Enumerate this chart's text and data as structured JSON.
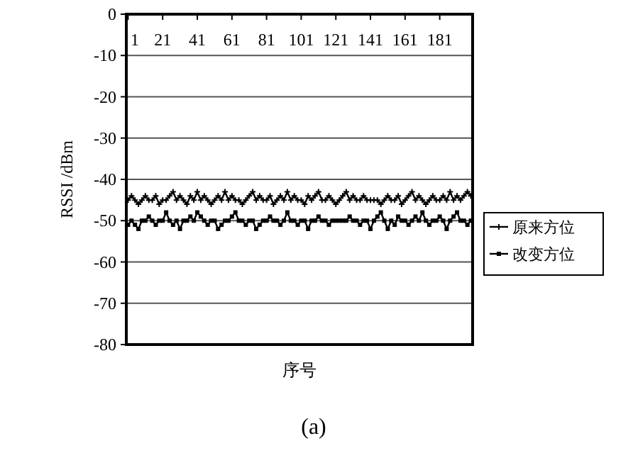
{
  "chart_data": {
    "type": "line",
    "xlabel": "序号",
    "ylabel": "RSSI /dBm",
    "annotations": [
      "(a)"
    ],
    "xlim": [
      0,
      200
    ],
    "xticks": [
      1,
      21,
      41,
      61,
      81,
      101,
      121,
      141,
      161,
      181
    ],
    "ylim": [
      -80,
      0
    ],
    "yticks": [
      0,
      -10,
      -20,
      -30,
      -40,
      -50,
      -60,
      -70,
      -80
    ],
    "grid": "y",
    "legend": "right",
    "line_style": "solid",
    "series": [
      {
        "name": "原来方位",
        "color": "#000000",
        "marker": "cross",
        "x": [
          1,
          3,
          5,
          7,
          9,
          11,
          13,
          15,
          17,
          19,
          21,
          23,
          25,
          27,
          29,
          31,
          33,
          35,
          37,
          39,
          41,
          43,
          45,
          47,
          49,
          51,
          53,
          55,
          57,
          59,
          61,
          63,
          65,
          67,
          69,
          71,
          73,
          75,
          77,
          79,
          81,
          83,
          85,
          87,
          89,
          91,
          93,
          95,
          97,
          99,
          101,
          103,
          105,
          107,
          109,
          111,
          113,
          115,
          117,
          119,
          121,
          123,
          125,
          127,
          129,
          131,
          133,
          135,
          137,
          139,
          141,
          143,
          145,
          147,
          149,
          151,
          153,
          155,
          157,
          159,
          161,
          163,
          165,
          167,
          169,
          171,
          173,
          175,
          177,
          179,
          181,
          183,
          185,
          187,
          189,
          191,
          193,
          195,
          197,
          199
        ],
        "values": [
          -45,
          -44,
          -45,
          -46,
          -45,
          -44,
          -45,
          -45,
          -44,
          -46,
          -45,
          -45,
          -44,
          -43,
          -45,
          -44,
          -45,
          -46,
          -44,
          -45,
          -43,
          -45,
          -44,
          -45,
          -46,
          -45,
          -44,
          -45,
          -43,
          -45,
          -44,
          -45,
          -45,
          -46,
          -45,
          -44,
          -43,
          -45,
          -44,
          -45,
          -45,
          -44,
          -46,
          -45,
          -44,
          -45,
          -43,
          -45,
          -44,
          -45,
          -45,
          -46,
          -44,
          -45,
          -44,
          -43,
          -45,
          -45,
          -44,
          -45,
          -46,
          -45,
          -44,
          -43,
          -45,
          -44,
          -45,
          -45,
          -44,
          -45,
          -45,
          -45,
          -45,
          -46,
          -45,
          -44,
          -45,
          -45,
          -44,
          -46,
          -45,
          -44,
          -43,
          -45,
          -44,
          -45,
          -46,
          -45,
          -44,
          -45,
          -45,
          -44,
          -45,
          -43,
          -45,
          -44,
          -45,
          -44,
          -43,
          -44
        ]
      },
      {
        "name": "改变方位",
        "color": "#000000",
        "marker": "square",
        "x": [
          1,
          3,
          5,
          7,
          9,
          11,
          13,
          15,
          17,
          19,
          21,
          23,
          25,
          27,
          29,
          31,
          33,
          35,
          37,
          39,
          41,
          43,
          45,
          47,
          49,
          51,
          53,
          55,
          57,
          59,
          61,
          63,
          65,
          67,
          69,
          71,
          73,
          75,
          77,
          79,
          81,
          83,
          85,
          87,
          89,
          91,
          93,
          95,
          97,
          99,
          101,
          103,
          105,
          107,
          109,
          111,
          113,
          115,
          117,
          119,
          121,
          123,
          125,
          127,
          129,
          131,
          133,
          135,
          137,
          139,
          141,
          143,
          145,
          147,
          149,
          151,
          153,
          155,
          157,
          159,
          161,
          163,
          165,
          167,
          169,
          171,
          173,
          175,
          177,
          179,
          181,
          183,
          185,
          187,
          189,
          191,
          193,
          195,
          197,
          199
        ],
        "values": [
          -51,
          -50,
          -51,
          -52,
          -50,
          -50,
          -49,
          -50,
          -51,
          -50,
          -50,
          -48,
          -50,
          -51,
          -50,
          -52,
          -50,
          -50,
          -49,
          -50,
          -48,
          -49,
          -50,
          -51,
          -50,
          -50,
          -52,
          -51,
          -50,
          -50,
          -49,
          -48,
          -50,
          -50,
          -51,
          -50,
          -50,
          -52,
          -51,
          -50,
          -50,
          -49,
          -50,
          -50,
          -51,
          -50,
          -48,
          -50,
          -50,
          -51,
          -50,
          -50,
          -52,
          -50,
          -50,
          -49,
          -50,
          -50,
          -51,
          -50,
          -50,
          -50,
          -50,
          -50,
          -49,
          -50,
          -50,
          -51,
          -50,
          -50,
          -52,
          -50,
          -49,
          -48,
          -50,
          -52,
          -50,
          -51,
          -49,
          -50,
          -50,
          -51,
          -50,
          -49,
          -50,
          -48,
          -50,
          -51,
          -50,
          -50,
          -49,
          -50,
          -52,
          -50,
          -49,
          -48,
          -50,
          -50,
          -51,
          -50
        ]
      }
    ]
  }
}
